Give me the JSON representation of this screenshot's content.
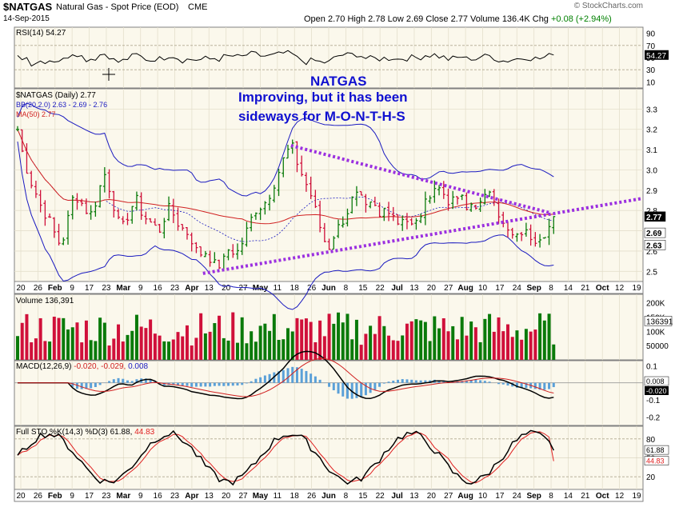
{
  "header": {
    "ticker": "$NATGAS",
    "name": "Natural Gas - Spot Price (EOD)",
    "exchange": "CME",
    "date": "14-Sep-2015",
    "copyright": "© StockCharts.com",
    "open_label": "Open",
    "open": "2.70",
    "high_label": "High",
    "high": "2.78",
    "low_label": "Low",
    "low": "2.69",
    "close_label": "Close",
    "close": "2.77",
    "volume_label": "Volume",
    "volume": "136.4K",
    "chg_label": "Chg",
    "chg": "+0.08 (+2.94%)"
  },
  "annotation": {
    "line1": "NATGAS",
    "line2": "Improving, but it has been",
    "line3": "sideways for M-O-N-T-H-S"
  },
  "colors": {
    "up": "#0a7a0a",
    "down": "#d0103a",
    "bb": "#1a1ac0",
    "ma": "#d02020",
    "trend": "#9b30e0",
    "panel_bg": "#fbf8ec",
    "stoch_k": "#000000",
    "stoch_d": "#e02020",
    "hist": "#5aa0d8"
  },
  "chart_data": [
    {
      "type": "line",
      "title": "RSI(14) 54.27",
      "series": [
        {
          "name": "RSI(14)",
          "last": 54.27
        }
      ],
      "yticks": [
        90,
        70,
        50,
        30,
        10
      ],
      "ylim": [
        0,
        100
      ],
      "last_label": "54.27"
    },
    {
      "type": "candlestick",
      "title": "$NATGAS (Daily) 2.77",
      "legend": [
        "BB(20,2.0) 2.63 - 2.69 - 2.76",
        "MA(50) 2.77"
      ],
      "yticks": [
        3.3,
        3.2,
        3.1,
        3.0,
        2.9,
        2.8,
        2.7,
        2.6,
        2.5
      ],
      "ylim": [
        2.45,
        3.4
      ],
      "price_labels": [
        {
          "value": 2.77,
          "text": "2.77",
          "bg": "#000000",
          "fg": "#ffffff"
        },
        {
          "value": 2.69,
          "text": "2.69",
          "bg": "#ffffff",
          "fg": "#000000"
        },
        {
          "value": 2.63,
          "text": "2.63",
          "bg": "#ffffff",
          "fg": "#000000"
        }
      ],
      "x_labels": [
        "20",
        "26",
        "Feb",
        "9",
        "17",
        "23",
        "Mar",
        "9",
        "16",
        "23",
        "Apr",
        "13",
        "20",
        "27",
        "May",
        "11",
        "18",
        "26",
        "Jun",
        "8",
        "15",
        "22",
        "Jul",
        "13",
        "20",
        "27",
        "Aug",
        "10",
        "17",
        "24",
        "Sep",
        "8",
        "14",
        "21",
        "Oct",
        "12",
        "19"
      ],
      "close_path": [
        3.2,
        3.05,
        2.95,
        2.88,
        2.8,
        2.76,
        2.68,
        2.62,
        2.75,
        2.88,
        2.85,
        2.8,
        2.78,
        2.9,
        2.98,
        2.88,
        2.75,
        2.72,
        2.8,
        2.86,
        2.78,
        2.75,
        2.72,
        2.7,
        2.82,
        2.78,
        2.72,
        2.7,
        2.65,
        2.58,
        2.6,
        2.56,
        2.52,
        2.55,
        2.62,
        2.58,
        2.64,
        2.72,
        2.8,
        2.82,
        2.85,
        2.92,
        3.0,
        3.08,
        3.12,
        3.02,
        2.95,
        2.88,
        2.78,
        2.66,
        2.62,
        2.7,
        2.74,
        2.8,
        2.88,
        2.86,
        2.8,
        2.84,
        2.76,
        2.82,
        2.8,
        2.74,
        2.78,
        2.72,
        2.74,
        2.8,
        2.88,
        2.92,
        2.9,
        2.85,
        2.84,
        2.88,
        2.8,
        2.84,
        2.82,
        2.86,
        2.92,
        2.8,
        2.72,
        2.68,
        2.66,
        2.7,
        2.68,
        2.66,
        2.68,
        2.7,
        2.77
      ],
      "trendlines": [
        {
          "from": [
            0.3,
            2.49
          ],
          "to": [
            1.0,
            2.86
          ],
          "style": "dotted"
        },
        {
          "from": [
            0.44,
            3.12
          ],
          "to": [
            0.85,
            2.79
          ],
          "style": "dotted"
        }
      ]
    },
    {
      "type": "bar",
      "title": "Volume 136,391",
      "yticks": [
        "200K",
        "150K",
        "100K",
        "50000"
      ],
      "ylim": [
        0,
        230000
      ],
      "last_label": "136391"
    },
    {
      "type": "line",
      "title": "MACD(12,26,9) -0.020, -0.029, 0.008",
      "title_parts": [
        "MACD(12,26,9)",
        "-0.020,",
        "-0.029,",
        "0.008"
      ],
      "yticks": [
        0.1,
        0.0,
        -0.1,
        -0.2
      ],
      "ylim": [
        -0.25,
        0.13
      ],
      "last_labels": [
        "0.008",
        "-0.020"
      ]
    },
    {
      "type": "line",
      "title": "Full STO %K(14,3) %D(3) 61.88, 44.83",
      "title_parts": [
        "Full STO %K(14,3) %D(3)",
        "61.88,",
        "44.83"
      ],
      "yticks": [
        80,
        50,
        20
      ],
      "ylim": [
        0,
        100
      ],
      "last_labels": [
        "61.88",
        "44.83"
      ]
    }
  ]
}
